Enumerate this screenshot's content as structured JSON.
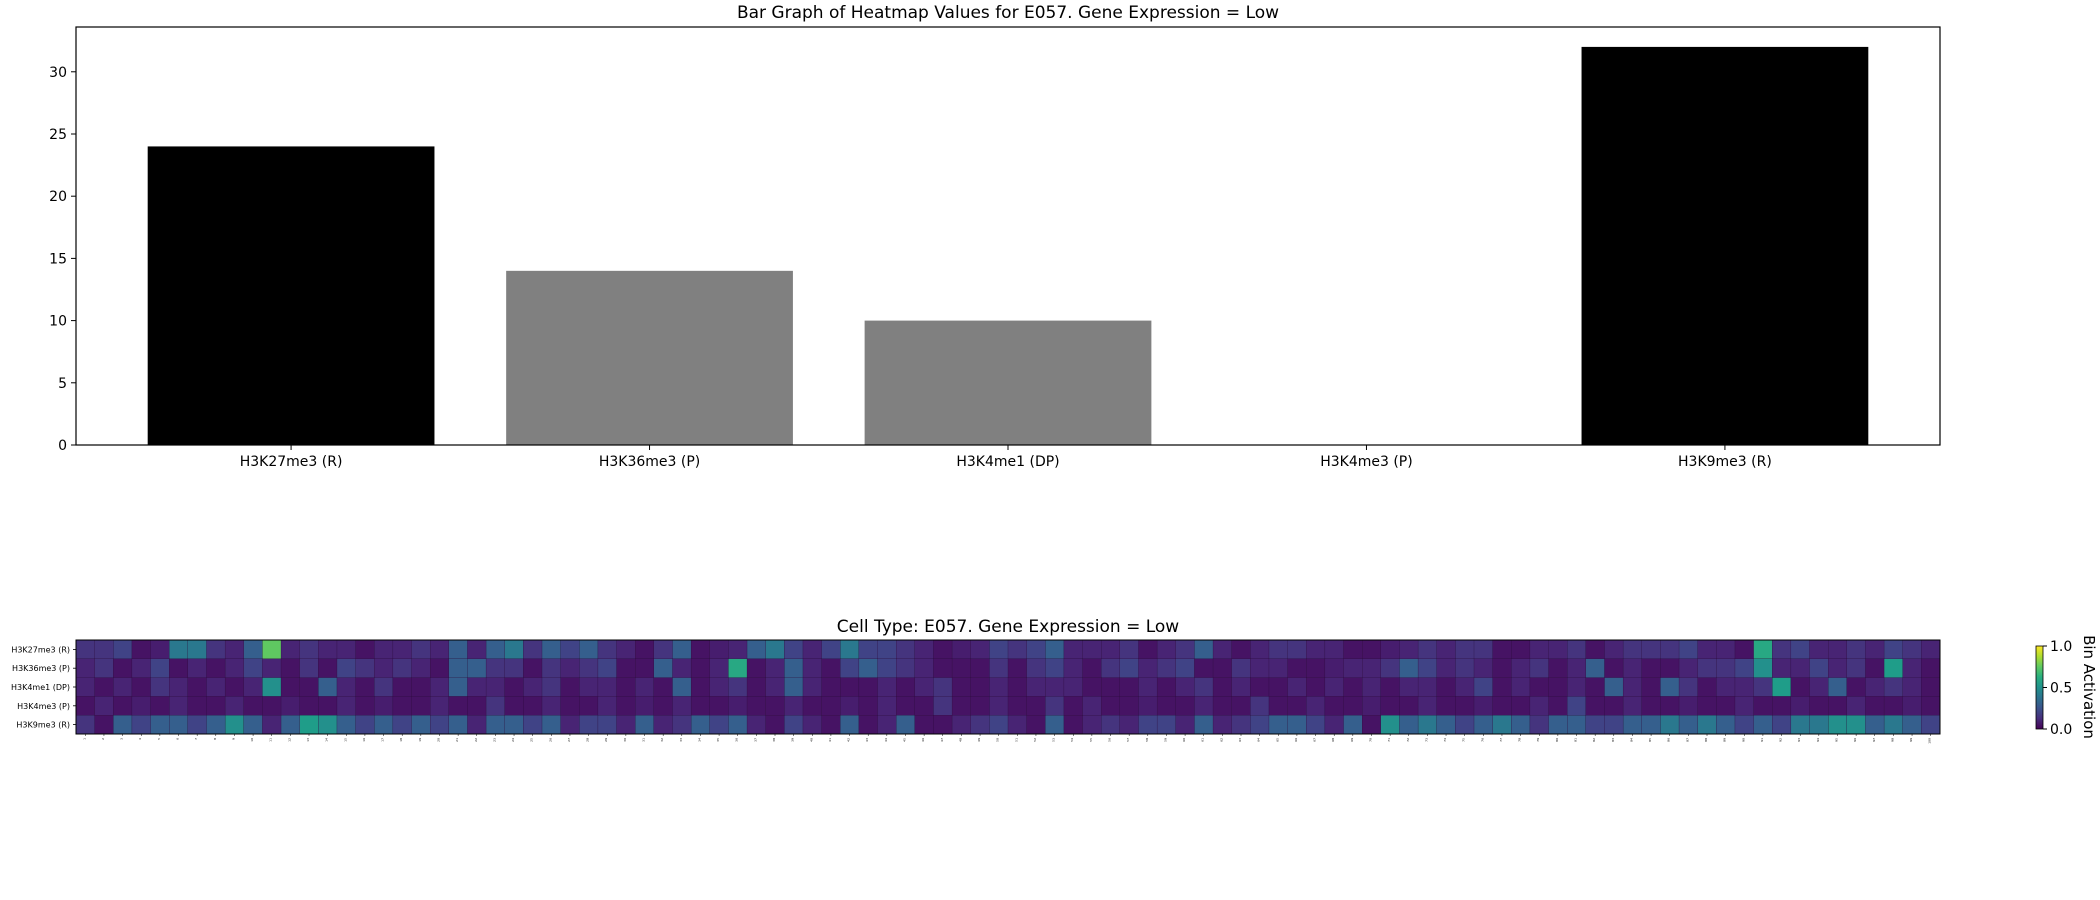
{
  "chart_data": [
    {
      "type": "bar",
      "title": "Bar Graph of Heatmap Values for E057. Gene Expression = Low",
      "xlabel": "",
      "ylabel": "",
      "categories": [
        "H3K27me3 (R)",
        "H3K36me3 (P)",
        "H3K4me1 (DP)",
        "H3K4me3 (P)",
        "H3K9me3 (R)"
      ],
      "values": [
        24,
        14,
        10,
        0,
        32
      ],
      "bar_colors": [
        "#000000",
        "#808080",
        "#808080",
        "#808080",
        "#000000"
      ],
      "ylim": [
        0,
        33.6
      ],
      "yticks": [
        0,
        5,
        10,
        15,
        20,
        25,
        30
      ],
      "grid": false
    },
    {
      "type": "heatmap",
      "title": "Cell Type: E057. Gene Expression = Low",
      "rows": [
        "H3K27me3 (R)",
        "H3K36me3 (P)",
        "H3K4me1 (DP)",
        "H3K4me3 (P)",
        "H3K9me3 (R)"
      ],
      "columns": [
        "1",
        "2",
        "3",
        "4",
        "5",
        "6",
        "7",
        "8",
        "9",
        "10",
        "11",
        "12",
        "13",
        "14",
        "15",
        "16",
        "17",
        "18",
        "19",
        "20",
        "21",
        "22",
        "23",
        "24",
        "25",
        "26",
        "27",
        "28",
        "29",
        "30",
        "31",
        "32",
        "33",
        "34",
        "35",
        "36",
        "37",
        "38",
        "39",
        "40",
        "41",
        "42",
        "43",
        "44",
        "45",
        "46",
        "47",
        "48",
        "49",
        "50",
        "51",
        "52",
        "53",
        "54",
        "55",
        "56",
        "57",
        "58",
        "59",
        "60",
        "61",
        "62",
        "63",
        "64",
        "65",
        "66",
        "67",
        "68",
        "69",
        "70",
        "71",
        "72",
        "73",
        "74",
        "75",
        "76",
        "77",
        "78",
        "79",
        "80",
        "81",
        "82",
        "83",
        "84",
        "85",
        "86",
        "87",
        "88",
        "89",
        "90",
        "91",
        "92",
        "93",
        "94",
        "95",
        "96",
        "97",
        "98",
        "99",
        "100"
      ],
      "values": [
        [
          0.15,
          0.15,
          0.2,
          0.05,
          0.08,
          0.4,
          0.4,
          0.15,
          0.1,
          0.3,
          0.75,
          0.1,
          0.15,
          0.1,
          0.1,
          0.05,
          0.1,
          0.1,
          0.15,
          0.1,
          0.3,
          0.1,
          0.3,
          0.4,
          0.15,
          0.3,
          0.2,
          0.3,
          0.15,
          0.1,
          0.05,
          0.15,
          0.3,
          0.05,
          0.08,
          0.1,
          0.3,
          0.4,
          0.2,
          0.1,
          0.2,
          0.4,
          0.2,
          0.2,
          0.15,
          0.1,
          0.05,
          0.08,
          0.1,
          0.2,
          0.15,
          0.2,
          0.3,
          0.1,
          0.1,
          0.1,
          0.15,
          0.05,
          0.1,
          0.15,
          0.3,
          0.1,
          0.05,
          0.1,
          0.15,
          0.15,
          0.1,
          0.1,
          0.05,
          0.05,
          0.08,
          0.1,
          0.15,
          0.1,
          0.15,
          0.15,
          0.05,
          0.05,
          0.1,
          0.1,
          0.15,
          0.05,
          0.1,
          0.15,
          0.15,
          0.15,
          0.2,
          0.1,
          0.1,
          0.05,
          0.6,
          0.15,
          0.2,
          0.1,
          0.1,
          0.15,
          0.1,
          0.2,
          0.15,
          0.1
        ],
        [
          0.1,
          0.15,
          0.05,
          0.1,
          0.2,
          0.05,
          0.1,
          0.05,
          0.1,
          0.2,
          0.1,
          0.05,
          0.15,
          0.05,
          0.2,
          0.15,
          0.1,
          0.15,
          0.1,
          0.05,
          0.3,
          0.3,
          0.15,
          0.15,
          0.05,
          0.15,
          0.1,
          0.15,
          0.2,
          0.05,
          0.05,
          0.3,
          0.1,
          0.05,
          0.1,
          0.6,
          0.05,
          0.1,
          0.3,
          0.1,
          0.05,
          0.2,
          0.3,
          0.2,
          0.15,
          0.1,
          0.05,
          0.05,
          0.05,
          0.15,
          0.05,
          0.15,
          0.2,
          0.1,
          0.05,
          0.15,
          0.2,
          0.1,
          0.15,
          0.2,
          0.05,
          0.05,
          0.15,
          0.1,
          0.1,
          0.05,
          0.05,
          0.08,
          0.1,
          0.1,
          0.15,
          0.3,
          0.2,
          0.1,
          0.15,
          0.1,
          0.05,
          0.1,
          0.15,
          0.05,
          0.1,
          0.3,
          0.05,
          0.1,
          0.05,
          0.05,
          0.1,
          0.15,
          0.15,
          0.2,
          0.5,
          0.1,
          0.1,
          0.2,
          0.1,
          0.15,
          0.05,
          0.55,
          0.1,
          0.05
        ],
        [
          0.1,
          0.05,
          0.1,
          0.05,
          0.15,
          0.1,
          0.05,
          0.1,
          0.05,
          0.1,
          0.5,
          0.05,
          0.05,
          0.3,
          0.1,
          0.05,
          0.15,
          0.05,
          0.05,
          0.1,
          0.3,
          0.1,
          0.1,
          0.05,
          0.1,
          0.15,
          0.05,
          0.1,
          0.1,
          0.05,
          0.1,
          0.05,
          0.3,
          0.05,
          0.1,
          0.15,
          0.05,
          0.1,
          0.3,
          0.1,
          0.05,
          0.05,
          0.05,
          0.1,
          0.05,
          0.1,
          0.15,
          0.05,
          0.05,
          0.1,
          0.05,
          0.1,
          0.1,
          0.1,
          0.05,
          0.05,
          0.05,
          0.1,
          0.05,
          0.1,
          0.15,
          0.05,
          0.1,
          0.05,
          0.05,
          0.1,
          0.05,
          0.1,
          0.05,
          0.1,
          0.05,
          0.1,
          0.1,
          0.05,
          0.1,
          0.2,
          0.05,
          0.1,
          0.05,
          0.05,
          0.1,
          0.05,
          0.3,
          0.1,
          0.05,
          0.3,
          0.15,
          0.05,
          0.1,
          0.1,
          0.15,
          0.55,
          0.05,
          0.1,
          0.3,
          0.05,
          0.1,
          0.15,
          0.1,
          0.05
        ],
        [
          0.05,
          0.1,
          0.05,
          0.08,
          0.05,
          0.1,
          0.05,
          0.05,
          0.1,
          0.05,
          0.05,
          0.08,
          0.05,
          0.05,
          0.1,
          0.05,
          0.08,
          0.05,
          0.05,
          0.1,
          0.05,
          0.05,
          0.15,
          0.05,
          0.05,
          0.1,
          0.05,
          0.05,
          0.1,
          0.05,
          0.08,
          0.05,
          0.1,
          0.05,
          0.05,
          0.08,
          0.05,
          0.05,
          0.1,
          0.05,
          0.05,
          0.08,
          0.05,
          0.1,
          0.05,
          0.05,
          0.15,
          0.05,
          0.05,
          0.1,
          0.05,
          0.05,
          0.15,
          0.05,
          0.1,
          0.05,
          0.05,
          0.08,
          0.05,
          0.05,
          0.1,
          0.05,
          0.05,
          0.15,
          0.05,
          0.05,
          0.1,
          0.05,
          0.05,
          0.08,
          0.05,
          0.05,
          0.1,
          0.05,
          0.05,
          0.08,
          0.05,
          0.05,
          0.1,
          0.05,
          0.2,
          0.05,
          0.05,
          0.1,
          0.05,
          0.05,
          0.08,
          0.05,
          0.05,
          0.1,
          0.05,
          0.05,
          0.08,
          0.05,
          0.05,
          0.1,
          0.05,
          0.05,
          0.08,
          0.05
        ],
        [
          0.15,
          0.05,
          0.3,
          0.2,
          0.3,
          0.3,
          0.2,
          0.3,
          0.5,
          0.3,
          0.1,
          0.3,
          0.55,
          0.5,
          0.3,
          0.2,
          0.3,
          0.2,
          0.3,
          0.2,
          0.3,
          0.1,
          0.3,
          0.3,
          0.2,
          0.3,
          0.1,
          0.2,
          0.2,
          0.1,
          0.3,
          0.1,
          0.15,
          0.3,
          0.2,
          0.3,
          0.1,
          0.05,
          0.2,
          0.1,
          0.05,
          0.3,
          0.05,
          0.1,
          0.3,
          0.05,
          0.05,
          0.1,
          0.15,
          0.2,
          0.1,
          0.05,
          0.3,
          0.05,
          0.1,
          0.15,
          0.1,
          0.2,
          0.2,
          0.1,
          0.3,
          0.1,
          0.15,
          0.2,
          0.3,
          0.3,
          0.2,
          0.1,
          0.3,
          0.05,
          0.5,
          0.3,
          0.4,
          0.3,
          0.2,
          0.3,
          0.4,
          0.3,
          0.15,
          0.3,
          0.3,
          0.2,
          0.2,
          0.3,
          0.3,
          0.4,
          0.3,
          0.4,
          0.3,
          0.2,
          0.3,
          0.2,
          0.4,
          0.4,
          0.5,
          0.5,
          0.3,
          0.4,
          0.3,
          0.2
        ]
      ],
      "vmin": 0,
      "vmax": 1,
      "colormap": "viridis",
      "colorbar_label": "Bin Activation",
      "colorbar_ticks": [
        "0.0",
        "0.5",
        "1.0"
      ]
    }
  ]
}
